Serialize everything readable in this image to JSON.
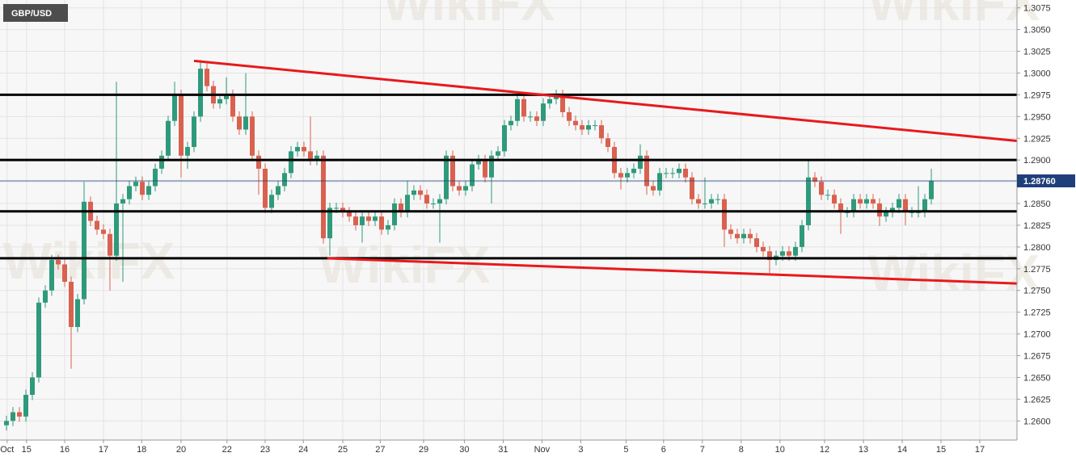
{
  "chart_data": {
    "type": "candlestick",
    "title": "GBP/USD",
    "watermark": "WikiFX",
    "up_color": "#2f9a7b",
    "down_color": "#d9614f",
    "grid": true,
    "ylim": [
      1.2578,
      1.3084
    ],
    "xlim": [
      -1,
      156.25
    ],
    "yticks": [
      {
        "value": 1.26,
        "label": "1.2600"
      },
      {
        "value": 1.2625,
        "label": "1.2625"
      },
      {
        "value": 1.265,
        "label": "1.2650"
      },
      {
        "value": 1.2675,
        "label": "1.2675"
      },
      {
        "value": 1.27,
        "label": "1.2700"
      },
      {
        "value": 1.2725,
        "label": "1.2725"
      },
      {
        "value": 1.275,
        "label": "1.2750"
      },
      {
        "value": 1.2775,
        "label": "1.2775"
      },
      {
        "value": 1.28,
        "label": "1.2800"
      },
      {
        "value": 1.2825,
        "label": "1.2825"
      },
      {
        "value": 1.285,
        "label": "1.2850"
      },
      {
        "value": 1.2875,
        "label": "1.2875"
      },
      {
        "value": 1.29,
        "label": "1.2900"
      },
      {
        "value": 1.2925,
        "label": "1.2925"
      },
      {
        "value": 1.295,
        "label": "1.2950"
      },
      {
        "value": 1.2975,
        "label": "1.2975"
      },
      {
        "value": 1.3,
        "label": "1.3000"
      },
      {
        "value": 1.3025,
        "label": "1.3025"
      },
      {
        "value": 1.305,
        "label": "1.3050"
      },
      {
        "value": 1.3075,
        "label": "1.3075"
      }
    ],
    "xticks": [
      {
        "value": 0.1,
        "label": "Oct"
      },
      {
        "value": 3.1,
        "label": "15"
      },
      {
        "value": 9,
        "label": "16"
      },
      {
        "value": 15,
        "label": "17"
      },
      {
        "value": 20.9,
        "label": "18"
      },
      {
        "value": 27,
        "label": "20"
      },
      {
        "value": 34.1,
        "label": "22"
      },
      {
        "value": 40,
        "label": "23"
      },
      {
        "value": 45.9,
        "label": "24"
      },
      {
        "value": 52,
        "label": "25"
      },
      {
        "value": 57.8,
        "label": "27"
      },
      {
        "value": 64.5,
        "label": "29"
      },
      {
        "value": 70.8,
        "label": "30"
      },
      {
        "value": 76.8,
        "label": "31"
      },
      {
        "value": 82.8,
        "label": "Nov"
      },
      {
        "value": 88.8,
        "label": "3"
      },
      {
        "value": 95.8,
        "label": "5"
      },
      {
        "value": 101.6,
        "label": "6"
      },
      {
        "value": 107.6,
        "label": "7"
      },
      {
        "value": 113.6,
        "label": "8"
      },
      {
        "value": 119.6,
        "label": "10"
      },
      {
        "value": 126.5,
        "label": "12"
      },
      {
        "value": 132.5,
        "label": "13"
      },
      {
        "value": 138.5,
        "label": "14"
      },
      {
        "value": 144.5,
        "label": "15"
      },
      {
        "value": 150.5,
        "label": "17"
      }
    ],
    "open": [
      1.2595,
      1.26,
      1.261,
      1.2605,
      1.263,
      1.265,
      1.2736,
      1.275,
      1.2785,
      1.278,
      1.276,
      1.2708,
      1.274,
      1.2852,
      1.283,
      1.282,
      1.2815,
      1.279,
      1.285,
      1.2855,
      1.287,
      1.2875,
      1.286,
      1.287,
      1.289,
      1.2905,
      1.2945,
      1.2975,
      1.2905,
      1.2915,
      1.295,
      1.3005,
      1.2985,
      1.2965,
      1.297,
      1.2975,
      1.295,
      1.2935,
      1.295,
      1.2905,
      1.289,
      1.2845,
      1.286,
      1.287,
      1.2885,
      1.291,
      1.2915,
      1.291,
      1.29,
      1.2905,
      1.281,
      1.2845,
      1.2845,
      1.284,
      1.2835,
      1.2825,
      1.2835,
      1.283,
      1.2835,
      1.282,
      1.2825,
      1.285,
      1.284,
      1.286,
      1.2865,
      1.286,
      1.285,
      1.285,
      1.2855,
      1.2905,
      1.287,
      1.2865,
      1.287,
      1.2895,
      1.29,
      1.288,
      1.2905,
      1.291,
      1.294,
      1.2945,
      1.297,
      1.295,
      1.295,
      1.2945,
      1.2965,
      1.297,
      1.2975,
      1.2955,
      1.2945,
      1.294,
      1.2935,
      1.294,
      1.294,
      1.2925,
      1.2915,
      1.2885,
      1.288,
      1.2885,
      1.289,
      1.2905,
      1.287,
      1.2865,
      1.2885,
      1.2885,
      1.2885,
      1.289,
      1.288,
      1.2855,
      1.285,
      1.285,
      1.2855,
      1.2855,
      1.282,
      1.2815,
      1.281,
      1.2815,
      1.281,
      1.28,
      1.2795,
      1.2785,
      1.279,
      1.2795,
      1.279,
      1.28,
      1.2825,
      1.288,
      1.2875,
      1.286,
      1.286,
      1.285,
      1.284,
      1.284,
      1.2855,
      1.285,
      1.2855,
      1.285,
      1.2835,
      1.284,
      1.2845,
      1.2855,
      1.284,
      1.284,
      1.284,
      1.2855
    ],
    "high": [
      1.2606,
      1.2616,
      1.2616,
      1.2636,
      1.2656,
      1.2742,
      1.2756,
      1.2791,
      1.2791,
      1.2786,
      1.2766,
      1.2746,
      1.2875,
      1.2858,
      1.2836,
      1.2826,
      1.2821,
      1.299,
      1.2861,
      1.2876,
      1.2881,
      1.2881,
      1.2876,
      1.2896,
      1.2911,
      1.2951,
      1.299,
      1.2981,
      1.2921,
      1.2956,
      1.3015,
      1.3011,
      1.2991,
      1.2976,
      1.2995,
      1.2981,
      1.2956,
      1.3,
      1.2956,
      1.2911,
      1.2896,
      1.2866,
      1.2876,
      1.2891,
      1.2916,
      1.2921,
      1.2921,
      1.295,
      1.2911,
      1.2911,
      1.2851,
      1.2851,
      1.2851,
      1.2846,
      1.2841,
      1.2841,
      1.2841,
      1.2841,
      1.2841,
      1.2831,
      1.2856,
      1.2856,
      1.2876,
      1.2871,
      1.2871,
      1.2866,
      1.2856,
      1.2861,
      1.2911,
      1.2911,
      1.2876,
      1.2876,
      1.2901,
      1.2906,
      1.2906,
      1.2911,
      1.2916,
      1.2946,
      1.2951,
      1.2976,
      1.2976,
      1.2956,
      1.2956,
      1.2971,
      1.2976,
      1.2981,
      1.2981,
      1.2961,
      1.2951,
      1.2946,
      1.2946,
      1.2946,
      1.2946,
      1.2931,
      1.2921,
      1.2891,
      1.2891,
      1.2896,
      1.2918,
      1.2911,
      1.2876,
      1.2891,
      1.2891,
      1.2891,
      1.2896,
      1.2896,
      1.2886,
      1.2861,
      1.288,
      1.2861,
      1.2861,
      1.2861,
      1.2826,
      1.2821,
      1.2821,
      1.2821,
      1.2816,
      1.2806,
      1.2801,
      1.2796,
      1.2801,
      1.2801,
      1.2806,
      1.2831,
      1.29,
      1.2886,
      1.2881,
      1.2866,
      1.2866,
      1.2856,
      1.2846,
      1.2861,
      1.2861,
      1.2861,
      1.2861,
      1.2856,
      1.2846,
      1.2851,
      1.2861,
      1.2861,
      1.2846,
      1.287,
      1.2861,
      1.289
    ],
    "low": [
      1.2589,
      1.2594,
      1.2599,
      1.2599,
      1.2624,
      1.2644,
      1.273,
      1.2744,
      1.2774,
      1.2754,
      1.266,
      1.2702,
      1.2734,
      1.2824,
      1.2814,
      1.2809,
      1.275,
      1.2784,
      1.276,
      1.2849,
      1.2864,
      1.2854,
      1.2854,
      1.2864,
      1.2884,
      1.2899,
      1.2939,
      1.288,
      1.289,
      1.2909,
      1.2944,
      1.2979,
      1.2959,
      1.2959,
      1.2964,
      1.2944,
      1.2929,
      1.2929,
      1.2899,
      1.286,
      1.2839,
      1.2839,
      1.2854,
      1.2864,
      1.2879,
      1.2904,
      1.2904,
      1.2894,
      1.2894,
      1.2804,
      1.279,
      1.2839,
      1.2834,
      1.2829,
      1.2819,
      1.2805,
      1.2824,
      1.2824,
      1.2814,
      1.2814,
      1.2819,
      1.2834,
      1.2834,
      1.2854,
      1.2854,
      1.2844,
      1.2844,
      1.2805,
      1.2849,
      1.2864,
      1.2859,
      1.2859,
      1.2864,
      1.2889,
      1.2874,
      1.285,
      1.2899,
      1.2904,
      1.2934,
      1.2939,
      1.2944,
      1.2944,
      1.2939,
      1.2939,
      1.2959,
      1.2964,
      1.2949,
      1.2939,
      1.2934,
      1.2929,
      1.2929,
      1.2934,
      1.2919,
      1.2909,
      1.2879,
      1.2866,
      1.2874,
      1.2879,
      1.2884,
      1.286,
      1.2859,
      1.2859,
      1.2879,
      1.2879,
      1.2879,
      1.2874,
      1.2849,
      1.2844,
      1.2844,
      1.2844,
      1.2849,
      1.28,
      1.2809,
      1.2804,
      1.2804,
      1.2804,
      1.2794,
      1.2789,
      1.277,
      1.2779,
      1.2784,
      1.2784,
      1.2784,
      1.2794,
      1.2819,
      1.2869,
      1.2854,
      1.2854,
      1.2844,
      1.2815,
      1.2834,
      1.2834,
      1.2844,
      1.2844,
      1.2844,
      1.2824,
      1.2829,
      1.2834,
      1.2839,
      1.2825,
      1.2834,
      1.2834,
      1.2834,
      1.2849
    ],
    "close": [
      1.26,
      1.261,
      1.2605,
      1.263,
      1.265,
      1.2736,
      1.275,
      1.2785,
      1.278,
      1.276,
      1.2708,
      1.274,
      1.2852,
      1.283,
      1.282,
      1.2815,
      1.279,
      1.285,
      1.2855,
      1.287,
      1.2875,
      1.286,
      1.287,
      1.289,
      1.2905,
      1.2945,
      1.2975,
      1.2905,
      1.2915,
      1.295,
      1.3005,
      1.2985,
      1.2965,
      1.297,
      1.2975,
      1.295,
      1.2935,
      1.295,
      1.2905,
      1.289,
      1.2845,
      1.286,
      1.287,
      1.2885,
      1.291,
      1.2915,
      1.291,
      1.29,
      1.2905,
      1.281,
      1.2845,
      1.2845,
      1.284,
      1.2835,
      1.2825,
      1.2835,
      1.283,
      1.2835,
      1.282,
      1.2825,
      1.285,
      1.284,
      1.286,
      1.2865,
      1.286,
      1.285,
      1.285,
      1.2855,
      1.2905,
      1.287,
      1.2865,
      1.287,
      1.2895,
      1.29,
      1.288,
      1.2905,
      1.291,
      1.294,
      1.2945,
      1.297,
      1.295,
      1.295,
      1.2945,
      1.2965,
      1.297,
      1.2975,
      1.2955,
      1.2945,
      1.294,
      1.2935,
      1.294,
      1.294,
      1.2925,
      1.2915,
      1.2885,
      1.288,
      1.2885,
      1.289,
      1.2905,
      1.287,
      1.2865,
      1.2885,
      1.2885,
      1.2885,
      1.289,
      1.288,
      1.2855,
      1.285,
      1.285,
      1.2855,
      1.2855,
      1.282,
      1.2815,
      1.281,
      1.2815,
      1.281,
      1.28,
      1.2795,
      1.2785,
      1.279,
      1.2795,
      1.279,
      1.28,
      1.2825,
      1.288,
      1.2875,
      1.286,
      1.286,
      1.285,
      1.284,
      1.284,
      1.2855,
      1.285,
      1.2855,
      1.285,
      1.2835,
      1.284,
      1.2845,
      1.2855,
      1.284,
      1.284,
      1.284,
      1.2855,
      1.2876
    ],
    "levels": [
      1.2975,
      1.29,
      1.2841,
      1.2787
    ],
    "level_color": "#000000",
    "trendlines": [
      {
        "x": [
          29,
          156.25
        ],
        "y": [
          1.3014,
          1.2922
        ]
      },
      {
        "x": [
          49.6,
          156.25
        ],
        "y": [
          1.2787,
          1.2758
        ]
      }
    ],
    "trend_color": "#e8191c",
    "last": {
      "value": 1.2876,
      "label": "1.28760"
    },
    "last_color": "#1f3f7a"
  }
}
